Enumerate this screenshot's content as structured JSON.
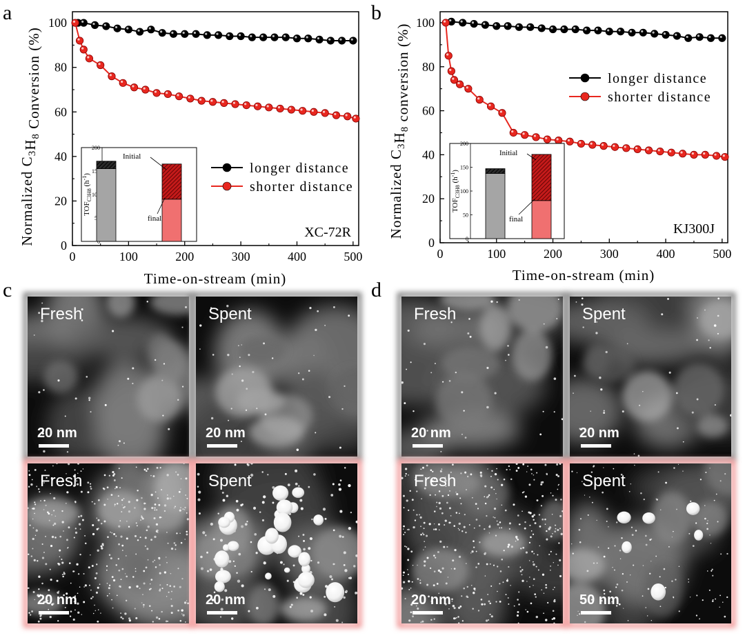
{
  "panels": {
    "a": {
      "letter": "a",
      "sample": "XC-72R",
      "chart_data": {
        "type": "line",
        "xlabel": "Time-on-stream (min)",
        "ylabel_parts": [
          "Normalized C",
          "3",
          "H",
          "8",
          " Conversion (%)"
        ],
        "xlim": [
          0,
          510
        ],
        "ylim": [
          0,
          105
        ],
        "xticks": [
          0,
          100,
          200,
          300,
          400,
          500
        ],
        "yticks": [
          0,
          20,
          40,
          60,
          80,
          100
        ],
        "legend_position": "middle-right",
        "series": [
          {
            "name": "longer distance",
            "color": "#000000",
            "x": [
              10,
              20,
              40,
              60,
              80,
              100,
              120,
              140,
              160,
              180,
              200,
              220,
              240,
              260,
              280,
              300,
              320,
              340,
              360,
              380,
              400,
              420,
              440,
              460,
              480,
              500
            ],
            "y": [
              100,
              100,
              99,
              98.5,
              97.5,
              97,
              96,
              97,
              95.5,
              95,
              95,
              95,
              94.5,
              94.5,
              94,
              94,
              93.5,
              93.5,
              93.5,
              93.5,
              93,
              93,
              92.5,
              92,
              92,
              92
            ]
          },
          {
            "name": "shorter distance",
            "color": "#e8271f",
            "x": [
              5,
              13,
              20,
              30,
              50,
              70,
              90,
              110,
              130,
              150,
              170,
              190,
              210,
              230,
              250,
              270,
              290,
              310,
              330,
              350,
              370,
              390,
              410,
              430,
              450,
              470,
              490,
              505
            ],
            "y": [
              100,
              92,
              88,
              84,
              81,
              76,
              73,
              71,
              70,
              68.5,
              68,
              67,
              66,
              65,
              64.5,
              64,
              63.5,
              63,
              62.5,
              62,
              61.5,
              61,
              60.5,
              60,
              59.5,
              58.5,
              58,
              57
            ]
          }
        ],
        "inset": {
          "ylabel_main": "TOF",
          "ylabel_sub": "C3H8",
          "ylabel_unit": "(h",
          "ylabel_exp": "-1",
          "ylabel_close": ")",
          "ylim": [
            0,
            200
          ],
          "yticks": [
            0,
            50,
            100,
            150,
            200
          ],
          "annotation_initial": "Initial",
          "annotation_final": "final",
          "bars": [
            {
              "final": 155,
              "initial": 171,
              "final_color": "#a5a5a5",
              "initial_color": "#1a1a1a"
            },
            {
              "final": 90,
              "initial": 165,
              "final_color": "#f07070",
              "initial_color": "#b01515"
            }
          ]
        }
      }
    },
    "b": {
      "letter": "b",
      "sample": "KJ300J",
      "chart_data": {
        "type": "line",
        "xlabel": "Time-on-stream (min)",
        "ylabel_parts": [
          "Normalized C",
          "3",
          "H",
          "8",
          " conversion (%)"
        ],
        "xlim": [
          0,
          510
        ],
        "ylim": [
          0,
          105
        ],
        "xticks": [
          0,
          100,
          200,
          300,
          400,
          500
        ],
        "yticks": [
          0,
          20,
          40,
          60,
          80,
          100
        ],
        "legend_position": "upper-right",
        "series": [
          {
            "name": "longer distance",
            "color": "#000000",
            "x": [
              20,
              40,
              60,
              80,
              100,
              120,
              140,
              160,
              180,
              200,
              220,
              240,
              260,
              280,
              300,
              320,
              340,
              360,
              380,
              400,
              420,
              440,
              460,
              480,
              500
            ],
            "y": [
              100.5,
              100,
              99.5,
              99,
              98.5,
              98.5,
              98,
              98,
              97.5,
              97,
              97,
              97,
              96.5,
              96.5,
              96,
              96,
              95.5,
              95.5,
              95,
              94.5,
              94,
              93,
              93.5,
              93,
              93
            ]
          },
          {
            "name": "shorter distance",
            "color": "#e8271f",
            "x": [
              10,
              15,
              20,
              25,
              35,
              50,
              70,
              90,
              110,
              130,
              150,
              170,
              190,
              210,
              230,
              250,
              270,
              290,
              310,
              330,
              350,
              370,
              390,
              410,
              430,
              450,
              470,
              490,
              505
            ],
            "y": [
              100,
              85,
              78,
              74,
              72,
              70,
              65,
              62,
              59,
              50,
              49,
              48,
              47,
              46.5,
              46,
              45,
              44.5,
              44,
              43.5,
              43,
              42.5,
              42,
              41.5,
              41,
              40.5,
              40,
              40,
              39.5,
              39
            ]
          }
        ],
        "inset": {
          "ylabel_main": "TOF",
          "ylabel_sub": "C3H8",
          "ylabel_unit": "(h",
          "ylabel_exp": "-1",
          "ylabel_close": ")",
          "ylim": [
            0,
            200
          ],
          "yticks": [
            0,
            50,
            100,
            150,
            200
          ],
          "annotation_initial": "Initial",
          "annotation_final": "final",
          "bars": [
            {
              "final": 137,
              "initial": 147,
              "final_color": "#a5a5a5",
              "initial_color": "#1a1a1a"
            },
            {
              "final": 80,
              "initial": 177,
              "final_color": "#f07070",
              "initial_color": "#b01515"
            }
          ]
        }
      }
    },
    "c": {
      "letter": "c",
      "images": [
        {
          "label": "Fresh",
          "scale": "20 nm",
          "frame": "#8a8a8a",
          "particles": "sparse-small",
          "seed": 11
        },
        {
          "label": "Spent",
          "scale": "20 nm",
          "frame": "#8a8a8a",
          "particles": "sparse-small",
          "seed": 23
        },
        {
          "label": "Fresh",
          "scale": "20 nm",
          "frame": "#f19a9a",
          "particles": "dense-small",
          "seed": 37
        },
        {
          "label": "Spent",
          "scale": "20 nm",
          "frame": "#f19a9a",
          "particles": "large-sintered",
          "seed": 41
        }
      ]
    },
    "d": {
      "letter": "d",
      "images": [
        {
          "label": "Fresh",
          "scale": "20 nm",
          "frame": "#8a8a8a",
          "particles": "sparse-small",
          "seed": 53
        },
        {
          "label": "Spent",
          "scale": "20 nm",
          "frame": "#8a8a8a",
          "particles": "sparse-small",
          "seed": 67
        },
        {
          "label": "Fresh",
          "scale": "20 nm",
          "frame": "#f19a9a",
          "particles": "dense-small",
          "seed": 71
        },
        {
          "label": "Spent",
          "scale": "50 nm",
          "frame": "#f19a9a",
          "particles": "few-large",
          "seed": 89
        }
      ]
    }
  }
}
